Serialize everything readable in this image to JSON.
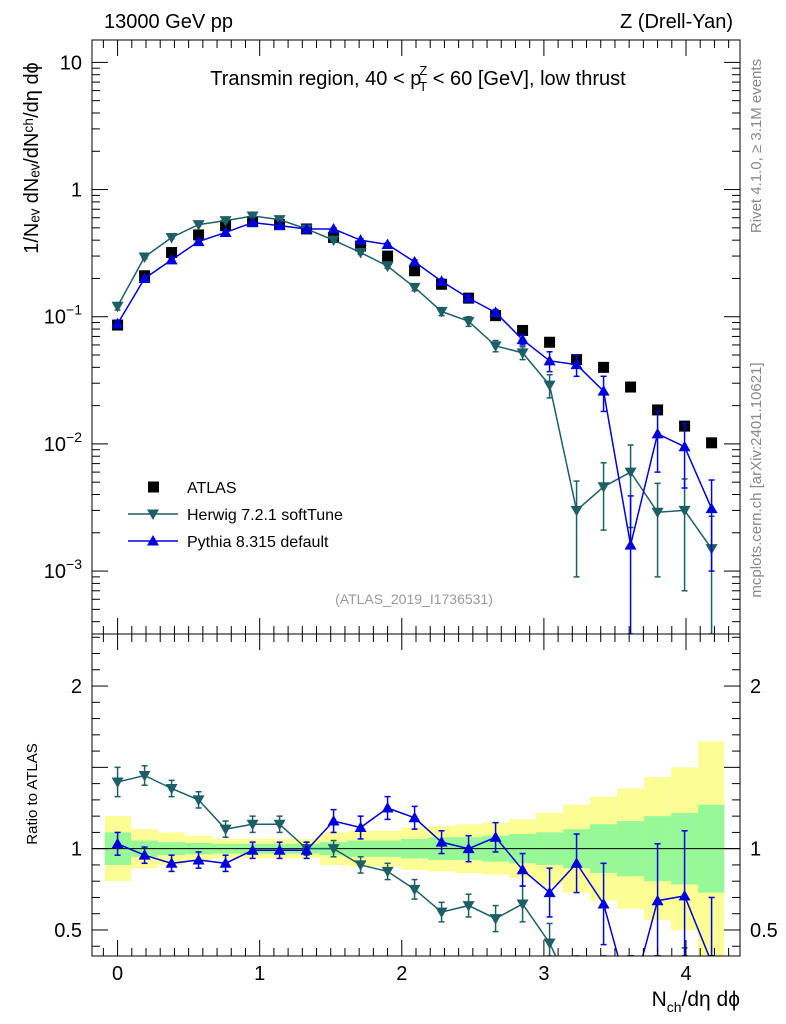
{
  "header": {
    "left": "13000 GeV pp",
    "right": "Z (Drell-Yan)"
  },
  "side_labels": {
    "rivet": "Rivet 4.1.0, ≥ 3.1M events",
    "mcplots": "mcplots.cern.ch [arXiv:2401.10621]"
  },
  "chart_data": {
    "type": "line",
    "title_parts": {
      "a": "Transmin region, 40 < p",
      "sup": "Z",
      "sub": "T",
      "b": " < 60 [GeV], low thrust"
    },
    "analysis_id": "(ATLAS_2019_I1736531)",
    "xlabel": {
      "main": "N",
      "sub": "ch",
      "rest": "/dη dϕ"
    },
    "ylabel": "1/Nₑᵥ dNₑᵥ/dNᶜʰ/dη dϕ",
    "ylabel_ratio": "Ratio to ATLAS",
    "xlim": [
      -0.18,
      4.38
    ],
    "ylim_main": [
      0.00032,
      15
    ],
    "yscale_main": "log",
    "ylim_ratio": [
      0.34,
      2.32
    ],
    "x_ticks": [
      0,
      1,
      2,
      3,
      4
    ],
    "main_y_ticks": [
      {
        "v": 10,
        "base": "10",
        "exp": ""
      },
      {
        "v": 1,
        "base": "1",
        "exp": ""
      },
      {
        "v": 0.1,
        "base": "10",
        "exp": "−1"
      },
      {
        "v": 0.01,
        "base": "10",
        "exp": "−2"
      },
      {
        "v": 0.001,
        "base": "10",
        "exp": "−3"
      }
    ],
    "ratio_y_ticks": [
      {
        "v": 2,
        "label": "2"
      },
      {
        "v": 1,
        "label": "1"
      },
      {
        "v": 0.5,
        "label": "0.5"
      }
    ],
    "legend": [
      {
        "label": "ATLAS",
        "marker": "square",
        "color": "#000000"
      },
      {
        "label": "Herwig 7.2.1 softTune",
        "marker": "triangle-down",
        "color": "#1e5f66"
      },
      {
        "label": "Pythia 8.315 default",
        "marker": "triangle-up",
        "color": "#0000dd"
      }
    ],
    "x": [
      0,
      0.19,
      0.38,
      0.57,
      0.76,
      0.95,
      1.14,
      1.33,
      1.52,
      1.71,
      1.9,
      2.09,
      2.28,
      2.47,
      2.66,
      2.85,
      3.04,
      3.23,
      3.42,
      3.61,
      3.8,
      3.99,
      4.18
    ],
    "atlas": [
      0.086,
      0.21,
      0.32,
      0.44,
      0.52,
      0.56,
      0.53,
      0.49,
      0.42,
      0.36,
      0.3,
      0.23,
      0.18,
      0.14,
      0.102,
      0.078,
      0.063,
      0.046,
      0.04,
      0.028,
      0.0185,
      0.0138,
      0.0102
    ],
    "herwig": [
      0.121,
      0.295,
      0.42,
      0.53,
      0.57,
      0.62,
      0.58,
      0.49,
      0.4,
      0.32,
      0.25,
      0.17,
      0.11,
      0.092,
      0.059,
      0.052,
      0.029,
      0.003,
      0.0046,
      0.006,
      0.0029,
      0.003,
      0.0015
    ],
    "herwig_err_lo": [
      0.008,
      0.01,
      0.01,
      0.01,
      0.01,
      0.01,
      0.01,
      0.01,
      0.01,
      0.01,
      0.01,
      0.01,
      0.008,
      0.008,
      0.006,
      0.006,
      0.006,
      0.0021,
      0.0025,
      0.0038,
      0.002,
      0.0023,
      0.0012
    ],
    "herwig_err_hi": [
      0.008,
      0.01,
      0.01,
      0.01,
      0.01,
      0.01,
      0.01,
      0.01,
      0.01,
      0.01,
      0.01,
      0.01,
      0.008,
      0.008,
      0.006,
      0.006,
      0.006,
      0.0021,
      0.0025,
      0.0038,
      0.002,
      0.0023,
      0.0012
    ],
    "pythia": [
      0.088,
      0.2,
      0.28,
      0.39,
      0.46,
      0.55,
      0.52,
      0.49,
      0.49,
      0.4,
      0.37,
      0.27,
      0.19,
      0.14,
      0.108,
      0.066,
      0.045,
      0.042,
      0.026,
      0.0016,
      0.012,
      0.0095,
      0.0031
    ],
    "pythia_err_lo": [
      0.006,
      0.008,
      0.01,
      0.01,
      0.01,
      0.01,
      0.01,
      0.01,
      0.01,
      0.01,
      0.01,
      0.01,
      0.008,
      0.008,
      0.006,
      0.006,
      0.008,
      0.008,
      0.008,
      0.00159,
      0.006,
      0.005,
      0.0021
    ],
    "pythia_err_hi": [
      0.006,
      0.008,
      0.01,
      0.01,
      0.01,
      0.01,
      0.01,
      0.01,
      0.01,
      0.01,
      0.01,
      0.01,
      0.008,
      0.008,
      0.006,
      0.006,
      0.008,
      0.008,
      0.008,
      0.0023,
      0.006,
      0.005,
      0.0021
    ],
    "ratio_herwig": [
      1.41,
      1.45,
      1.37,
      1.3,
      1.12,
      1.15,
      1.15,
      1.0,
      1.0,
      0.9,
      0.86,
      0.75,
      0.61,
      0.65,
      0.57,
      0.66,
      0.42,
      0.06,
      0.12,
      0.21,
      0.16,
      0.22,
      0.15
    ],
    "ratio_herwig_err": [
      0.09,
      0.06,
      0.05,
      0.05,
      0.05,
      0.05,
      0.05,
      0.04,
      0.05,
      0.05,
      0.05,
      0.06,
      0.06,
      0.07,
      0.08,
      0.11,
      0.12,
      0.05,
      0.07,
      0.13,
      0.1,
      0.17,
      0.12
    ],
    "ratio_pythia": [
      1.03,
      0.96,
      0.91,
      0.93,
      0.91,
      0.99,
      0.99,
      0.99,
      1.17,
      1.13,
      1.25,
      1.19,
      1.04,
      1.0,
      1.07,
      0.87,
      0.73,
      0.91,
      0.66,
      0.06,
      0.68,
      0.71,
      0.3
    ],
    "ratio_pythia_err": [
      0.07,
      0.05,
      0.05,
      0.05,
      0.05,
      0.05,
      0.05,
      0.05,
      0.07,
      0.07,
      0.07,
      0.07,
      0.07,
      0.08,
      0.09,
      0.1,
      0.15,
      0.18,
      0.25,
      0.1,
      0.35,
      0.4,
      0.4
    ],
    "band_edges": [
      -0.09,
      0.095,
      0.285,
      0.475,
      0.665,
      0.855,
      1.045,
      1.235,
      1.425,
      1.615,
      1.805,
      1.995,
      2.185,
      2.375,
      2.565,
      2.755,
      2.945,
      3.135,
      3.325,
      3.515,
      3.705,
      3.895,
      4.085,
      4.27
    ],
    "band_green": [
      [
        0.9,
        1.1
      ],
      [
        0.95,
        1.05
      ],
      [
        0.96,
        1.04
      ],
      [
        0.965,
        1.035
      ],
      [
        0.97,
        1.03
      ],
      [
        0.97,
        1.03
      ],
      [
        0.97,
        1.03
      ],
      [
        0.97,
        1.03
      ],
      [
        0.96,
        1.04
      ],
      [
        0.95,
        1.05
      ],
      [
        0.95,
        1.05
      ],
      [
        0.94,
        1.06
      ],
      [
        0.93,
        1.07
      ],
      [
        0.93,
        1.07
      ],
      [
        0.92,
        1.08
      ],
      [
        0.91,
        1.09
      ],
      [
        0.9,
        1.1
      ],
      [
        0.88,
        1.12
      ],
      [
        0.85,
        1.15
      ],
      [
        0.83,
        1.17
      ],
      [
        0.8,
        1.2
      ],
      [
        0.78,
        1.22
      ],
      [
        0.73,
        1.27
      ]
    ],
    "band_yellow": [
      [
        0.8,
        1.2
      ],
      [
        0.88,
        1.12
      ],
      [
        0.9,
        1.1
      ],
      [
        0.92,
        1.08
      ],
      [
        0.94,
        1.06
      ],
      [
        0.94,
        1.06
      ],
      [
        0.94,
        1.06
      ],
      [
        0.94,
        1.06
      ],
      [
        0.9,
        1.1
      ],
      [
        0.89,
        1.11
      ],
      [
        0.89,
        1.11
      ],
      [
        0.87,
        1.13
      ],
      [
        0.86,
        1.14
      ],
      [
        0.85,
        1.15
      ],
      [
        0.84,
        1.16
      ],
      [
        0.82,
        1.18
      ],
      [
        0.78,
        1.22
      ],
      [
        0.73,
        1.27
      ],
      [
        0.68,
        1.32
      ],
      [
        0.63,
        1.37
      ],
      [
        0.56,
        1.44
      ],
      [
        0.5,
        1.5
      ],
      [
        0.34,
        1.66
      ]
    ],
    "colors": {
      "atlas": "#000000",
      "herwig": "#1e5f66",
      "pythia": "#0000dd",
      "band_green": "#96f896",
      "band_yellow": "#fdfd96"
    }
  }
}
